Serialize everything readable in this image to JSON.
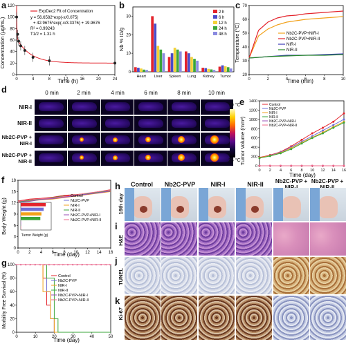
{
  "panels": {
    "a": "a",
    "b": "b",
    "c": "c",
    "d": "d",
    "e": "e",
    "f": "f",
    "g": "g",
    "h": "h",
    "i": "i",
    "j": "j",
    "k": "k"
  },
  "panel_a": {
    "legend": "ExpDec2 Fit of Concentration",
    "eq1": "y = 56.6582*exp(-x/0.075)",
    "eq2": "+ 42.9675*exp(-x/3.3376) + 19.9676",
    "r2": "R² = 0.99243",
    "thalf": "T1/2 = 1.31 h",
    "xlabel": "Time (h)",
    "ylabel": "Concentration (μg/mL)"
  },
  "panel_b": {
    "ylabel": "Nb % ID/g"
  },
  "panel_c": {
    "xlabel": "Time (min)",
    "ylabel": "Temperature (°C)"
  },
  "panel_d": {
    "times": [
      "0 min",
      "2 min",
      "4 min",
      "6 min",
      "8 min",
      "10 min"
    ],
    "rows": [
      "NIR-I",
      "NIR-II",
      "Nb2C-PVP + NIR-I",
      "Nb2C-PVP + NIR-II"
    ],
    "cbar_max": "70 °C",
    "cbar_min": "25 °C"
  },
  "panel_e": {
    "xlabel": "Time (day)",
    "ylabel": "Tumor Volume (mm³)"
  },
  "panel_f": {
    "xlabel": "Time (day)",
    "ylabel": "Body Weight (g)",
    "inset_xlabel": "Tumor Weight (g)"
  },
  "panel_g": {
    "xlabel": "Time (day)",
    "ylabel": "Morbility Free Survival (%)"
  },
  "panel_h": {
    "groups": [
      "Control",
      "Nb2C-PVP",
      "NIR-I",
      "NIR-II",
      "Nb2C-PVP + NIR-I",
      "Nb2C-PVP + NIR-II"
    ],
    "day_label": "16th day"
  },
  "rows_hist": {
    "i": "H&E",
    "j": "TUNEL",
    "k": "Ki-67"
  },
  "legends": {
    "c": [
      "Nb2C-PVP+NIR-I",
      "Nb2C-PVP+NIR-II",
      "NIR-I",
      "NIR-II"
    ],
    "b": [
      "2 h",
      "6 h",
      "12 h",
      "24 h",
      "48 h"
    ],
    "treatment": [
      "Control",
      "Nb2C-PVP",
      "NIR-I",
      "NIR-II",
      "Nb2C-PVP+NIR-I",
      "Nb2C-PVP+NIR-II"
    ]
  },
  "colors": {
    "control": "#e3232b",
    "nb2c": "#6f6fd8",
    "nir1": "#f2a21c",
    "nir2": "#3aa53a",
    "nb2c_nir1": "#9a4db5",
    "nb2c_nir2": "#ef6a8a",
    "t2h": "#e3232b",
    "t6h": "#4b4bc8",
    "t12h": "#f3d23a",
    "t24h": "#3aa53a",
    "t48h": "#8a8ae0"
  },
  "chart_data": [
    {
      "panel": "a",
      "type": "scatter",
      "x": [
        0,
        0.25,
        0.5,
        1,
        2,
        4,
        8,
        24
      ],
      "values": [
        100,
        70,
        58,
        50,
        42,
        30,
        24,
        20
      ],
      "xlim": [
        0,
        24
      ],
      "ylim": [
        0,
        120
      ],
      "xticks": [
        0,
        4,
        8,
        12,
        16,
        20,
        24
      ],
      "yticks": [
        0,
        20,
        40,
        60,
        80,
        100,
        120
      ]
    },
    {
      "panel": "b",
      "type": "bar",
      "categories": [
        "Heart",
        "Liver",
        "Spleen",
        "Lung",
        "Kidney",
        "Tumor"
      ],
      "series": [
        {
          "name": "2 h",
          "values": [
            2.5,
            30,
            8,
            11,
            2.2,
            2.8
          ]
        },
        {
          "name": "6 h",
          "values": [
            2.2,
            26,
            10,
            10,
            2.0,
            3.5
          ]
        },
        {
          "name": "12 h",
          "values": [
            1.8,
            14,
            13,
            8,
            1.6,
            3.0
          ]
        },
        {
          "name": "24 h",
          "values": [
            1.2,
            12,
            12,
            7,
            1.3,
            2.5
          ]
        },
        {
          "name": "48 h",
          "values": [
            1.0,
            10,
            11,
            6,
            1.0,
            1.8
          ]
        }
      ],
      "ylim": [
        0,
        35
      ],
      "yticks": [
        0,
        10,
        20,
        30
      ]
    },
    {
      "panel": "c",
      "type": "line",
      "xlim": [
        0,
        10
      ],
      "ylim": [
        20,
        70
      ],
      "xticks": [
        0,
        2,
        4,
        6,
        8,
        10
      ],
      "yticks": [
        20,
        30,
        40,
        50,
        60,
        70
      ],
      "series": [
        {
          "name": "Nb2C-PVP+NIR-I",
          "x": [
            0,
            1,
            2,
            3,
            4,
            5,
            6,
            7,
            8,
            9,
            10
          ],
          "values": [
            32,
            48,
            53,
            56,
            58,
            59,
            60,
            60.5,
            61,
            61.5,
            62
          ]
        },
        {
          "name": "Nb2C-PVP+NIR-II",
          "x": [
            0,
            1,
            2,
            3,
            4,
            5,
            6,
            7,
            8,
            9,
            10
          ],
          "values": [
            32,
            52,
            58,
            61,
            62.5,
            63,
            64,
            64.5,
            65,
            65.5,
            66
          ]
        },
        {
          "name": "NIR-I",
          "x": [
            0,
            2,
            4,
            6,
            8,
            10
          ],
          "values": [
            32,
            33,
            34,
            34,
            34.5,
            35
          ]
        },
        {
          "name": "NIR-II",
          "x": [
            0,
            2,
            4,
            6,
            8,
            10
          ],
          "values": [
            32,
            33,
            33.5,
            34,
            34,
            34.5
          ]
        }
      ]
    },
    {
      "panel": "e",
      "type": "line",
      "x": [
        0,
        2,
        4,
        6,
        8,
        10,
        12,
        14,
        16
      ],
      "xlim": [
        0,
        16
      ],
      "ylim": [
        0,
        1400
      ],
      "xticks": [
        0,
        2,
        4,
        6,
        8,
        10,
        12,
        14,
        16
      ],
      "yticks": [
        0,
        200,
        400,
        600,
        800,
        1000,
        1200,
        1400
      ],
      "series": [
        {
          "name": "Control",
          "values": [
            180,
            230,
            300,
            420,
            560,
            700,
            820,
            950,
            1130
          ]
        },
        {
          "name": "Nb2C-PVP",
          "values": [
            170,
            220,
            290,
            400,
            520,
            640,
            760,
            880,
            1000
          ]
        },
        {
          "name": "NIR-I",
          "values": [
            175,
            215,
            280,
            380,
            500,
            610,
            720,
            840,
            950
          ]
        },
        {
          "name": "NIR-II",
          "values": [
            165,
            210,
            270,
            360,
            480,
            600,
            700,
            820,
            930
          ]
        },
        {
          "name": "Nb2C-PVP+NIR-I",
          "values": [
            0,
            0,
            0,
            0,
            0,
            0,
            0,
            0,
            0
          ]
        },
        {
          "name": "Nb2C-PVP+NIR-II",
          "values": [
            0,
            0,
            0,
            0,
            0,
            0,
            0,
            0,
            0
          ]
        }
      ]
    },
    {
      "panel": "f",
      "type": "line",
      "x": [
        0,
        2,
        4,
        6,
        8,
        10,
        12,
        14,
        16
      ],
      "xlim": [
        0,
        16
      ],
      "ylim": [
        0,
        18
      ],
      "xticks": [
        0,
        2,
        4,
        6,
        8,
        10,
        12,
        14,
        16
      ],
      "yticks": [
        0,
        3,
        6,
        9,
        12,
        15,
        18
      ],
      "series": [
        {
          "name": "Control",
          "values": [
            12.5,
            13,
            13.2,
            13.5,
            14,
            14.2,
            14.5,
            15,
            15.5
          ]
        },
        {
          "name": "Nb2C-PVP",
          "values": [
            12.2,
            12.6,
            13,
            13.2,
            13.6,
            14,
            14.4,
            14.8,
            15.2
          ]
        },
        {
          "name": "NIR-I",
          "values": [
            12,
            12.5,
            12.8,
            13,
            13.4,
            13.8,
            14.2,
            14.6,
            15
          ]
        },
        {
          "name": "NIR-II",
          "values": [
            12.3,
            12.7,
            13,
            13.4,
            13.8,
            14.1,
            14.5,
            14.9,
            15.3
          ]
        },
        {
          "name": "Nb2C-PVP+NIR-I",
          "values": [
            12.1,
            12.4,
            12.9,
            13.1,
            13.5,
            13.9,
            14.3,
            14.7,
            15.1
          ]
        },
        {
          "name": "Nb2C-PVP+NIR-II",
          "values": [
            12.4,
            12.8,
            13.1,
            13.3,
            13.7,
            14.1,
            14.6,
            15,
            15.4
          ]
        }
      ],
      "inset": {
        "type": "bar",
        "xlim": [
          0,
          1.4
        ],
        "xticks": [
          0,
          0.2,
          0.4,
          0.6,
          0.8,
          1.0,
          1.2,
          1.4
        ],
        "categories": [
          "Control",
          "Nb2C-PVP",
          "NIR-I",
          "NIR-II",
          "Nb2C-PVP+NIR-I",
          "Nb2C-PVP+NIR-II"
        ],
        "values": [
          1.15,
          1.05,
          0.95,
          0.9,
          0,
          0
        ]
      }
    },
    {
      "panel": "g",
      "type": "line",
      "xlim": [
        0,
        50
      ],
      "ylim": [
        0,
        100
      ],
      "xticks": [
        0,
        10,
        20,
        30,
        40,
        50
      ],
      "yticks": [
        0,
        20,
        40,
        60,
        80,
        100
      ],
      "series": [
        {
          "name": "Control",
          "x": [
            0,
            14,
            14,
            16,
            16,
            18,
            18,
            20,
            20,
            50
          ],
          "values": [
            100,
            100,
            80,
            80,
            40,
            40,
            20,
            20,
            0,
            0
          ]
        },
        {
          "name": "Nb2C-PVP",
          "x": [
            0,
            16,
            16,
            18,
            18,
            20,
            20,
            50
          ],
          "values": [
            100,
            100,
            60,
            60,
            20,
            20,
            0,
            0
          ]
        },
        {
          "name": "NIR-I",
          "x": [
            0,
            14,
            14,
            18,
            18,
            20,
            20,
            50
          ],
          "values": [
            100,
            100,
            60,
            60,
            20,
            20,
            0,
            0
          ]
        },
        {
          "name": "NIR-II",
          "x": [
            0,
            16,
            16,
            20,
            20,
            22,
            22,
            50
          ],
          "values": [
            100,
            100,
            80,
            80,
            20,
            20,
            0,
            0
          ]
        },
        {
          "name": "Nb2C-PVP+NIR-I",
          "x": [
            0,
            50
          ],
          "values": [
            100,
            100
          ]
        },
        {
          "name": "Nb2C-PVP+NIR-II",
          "x": [
            0,
            50
          ],
          "values": [
            100,
            100
          ]
        }
      ]
    }
  ]
}
